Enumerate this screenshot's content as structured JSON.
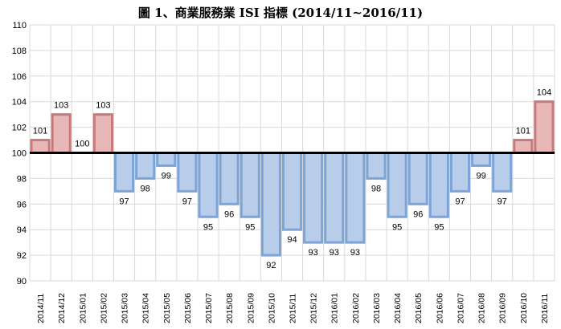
{
  "chart_title": "圖 1、商業服務業 ISI 指標 (2014/11~2016/11)",
  "chart_data": {
    "type": "bar",
    "title": "圖 1、商業服務業 ISI 指標 (2014/11~2016/11)",
    "baseline": 100,
    "ylim": [
      90,
      110
    ],
    "yticks": [
      90,
      92,
      94,
      96,
      98,
      100,
      102,
      104,
      106,
      108,
      110
    ],
    "grid": true,
    "categories": [
      "2014/11",
      "2014/12",
      "2015/01",
      "2015/02",
      "2015/03",
      "2015/04",
      "2015/05",
      "2015/06",
      "2015/07",
      "2015/08",
      "2015/09",
      "2015/10",
      "2015/11",
      "2015/12",
      "2016/01",
      "2016/02",
      "2016/03",
      "2016/04",
      "2016/05",
      "2016/06",
      "2016/07",
      "2016/08",
      "2016/09",
      "2016/10",
      "2016/11"
    ],
    "values": [
      101,
      103,
      100,
      103,
      97,
      98,
      99,
      97,
      95,
      96,
      95,
      92,
      94,
      93,
      93,
      93,
      98,
      95,
      96,
      95,
      97,
      99,
      97,
      101,
      104
    ],
    "colors": {
      "above_fill": "#e8b7b8",
      "above_stroke": "#c77a7b",
      "below_fill": "#b7cde9",
      "below_stroke": "#7ea4d6",
      "baseline": "#000000",
      "grid": "#d9d9d9"
    }
  }
}
